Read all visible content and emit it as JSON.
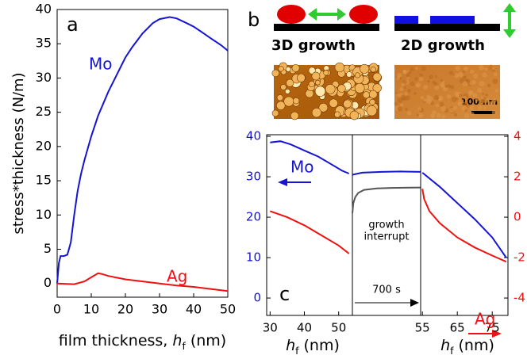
{
  "chart_data": [
    {
      "type": "line",
      "panel": "a",
      "xlabel": {
        "pre": "film thickness, ",
        "var": "h",
        "sub": "f",
        "post": " (nm)"
      },
      "ylabel": "stress*thickness (N/m)",
      "xlim": [
        0,
        50
      ],
      "ylim": [
        -2,
        40
      ],
      "xticks": [
        0,
        10,
        20,
        30,
        40,
        50
      ],
      "yticks": [
        0,
        5,
        10,
        15,
        20,
        25,
        30,
        35,
        40
      ],
      "series": [
        {
          "name": "Mo",
          "color": "#1414d2",
          "x": [
            0,
            0.5,
            1,
            2,
            3,
            4,
            5,
            6,
            7,
            8,
            10,
            12,
            15,
            18,
            20,
            22,
            25,
            28,
            30,
            33,
            35,
            38,
            40,
            43,
            45,
            48,
            50
          ],
          "values": [
            0,
            3,
            4,
            4,
            4.2,
            6,
            10,
            13.5,
            16,
            18,
            21.5,
            24.5,
            28,
            31,
            33,
            34.5,
            36.5,
            38,
            38.6,
            38.9,
            38.7,
            38,
            37.5,
            36.5,
            35.8,
            34.8,
            34
          ]
        },
        {
          "name": "Ag",
          "color": "#ee1111",
          "x": [
            0,
            5,
            8,
            10,
            12,
            13,
            15,
            20,
            25,
            30,
            35,
            40,
            45,
            50
          ],
          "values": [
            0,
            -0.1,
            0.3,
            0.9,
            1.5,
            1.4,
            1.1,
            0.6,
            0.3,
            0,
            -0.3,
            -0.5,
            -0.8,
            -1.1
          ]
        }
      ]
    },
    {
      "type": "line",
      "panel": "c",
      "xlabel": {
        "var": "h",
        "sub": "f",
        "post": " (nm)"
      },
      "xlim": [
        29,
        54
      ],
      "ylim": [
        -4.3,
        40.4
      ],
      "y2lim": [
        -4.86,
        4.08
      ],
      "xticks": [
        30,
        40,
        50
      ],
      "yticks": [
        0,
        10,
        20,
        30,
        40
      ],
      "ytick_color": "#1414d2",
      "series": [
        {
          "name": "Mo",
          "color": "#1414d2",
          "x": [
            30,
            33,
            36,
            40,
            44,
            48,
            51,
            53
          ],
          "values": [
            38.5,
            38.8,
            38,
            36.5,
            35,
            33,
            31.5,
            30.8
          ]
        },
        {
          "color": "#ee1111",
          "axis": "y2",
          "x": [
            30,
            35,
            40,
            45,
            50,
            53
          ],
          "values": [
            0.3,
            0,
            -0.4,
            -0.9,
            -1.4,
            -1.8
          ]
        }
      ]
    },
    {
      "type": "line",
      "annotations": [
        [
          "growth",
          "interrupt"
        ],
        "700 s"
      ],
      "xlim": [
        0,
        700
      ],
      "ylim": [
        -4.3,
        40.4
      ],
      "y2lim": [
        -4.86,
        4.08
      ],
      "series": [
        {
          "color": "#1414d2",
          "x": [
            0,
            100,
            300,
            500,
            700
          ],
          "values": [
            30.5,
            31,
            31.2,
            31.3,
            31.2
          ]
        },
        {
          "color": "#555555",
          "axis": "y2",
          "x": [
            0,
            10,
            30,
            60,
            120,
            250,
            400,
            700
          ],
          "values": [
            0.2,
            0.7,
            1.0,
            1.2,
            1.35,
            1.42,
            1.45,
            1.47
          ]
        }
      ]
    },
    {
      "type": "line",
      "xlabel": {
        "var": "h",
        "sub": "f",
        "post": " (nm)"
      },
      "xlim": [
        54.5,
        79.5
      ],
      "ylim": [
        -4.3,
        40.4
      ],
      "y2lim": [
        -4.86,
        4.08
      ],
      "xticks": [
        55,
        65,
        75
      ],
      "y2ticks": [
        -4,
        -2,
        0,
        2,
        4
      ],
      "y2tick_color": "#ee1111",
      "series": [
        {
          "color": "#1414d2",
          "x": [
            55,
            60,
            65,
            70,
            75,
            79
          ],
          "values": [
            31,
            27.5,
            23.5,
            19.5,
            15,
            10
          ]
        },
        {
          "name": "Ag",
          "color": "#ee1111",
          "axis": "y2",
          "x": [
            55,
            55.5,
            57,
            60,
            65,
            70,
            75,
            79
          ],
          "values": [
            1.4,
            0.9,
            0.3,
            -0.3,
            -1.0,
            -1.5,
            -1.9,
            -2.2
          ]
        }
      ]
    }
  ],
  "schematic": {
    "label": "b",
    "left_caption": "3D growth",
    "right_caption": "2D growth",
    "scale_bar": "100 nm"
  }
}
